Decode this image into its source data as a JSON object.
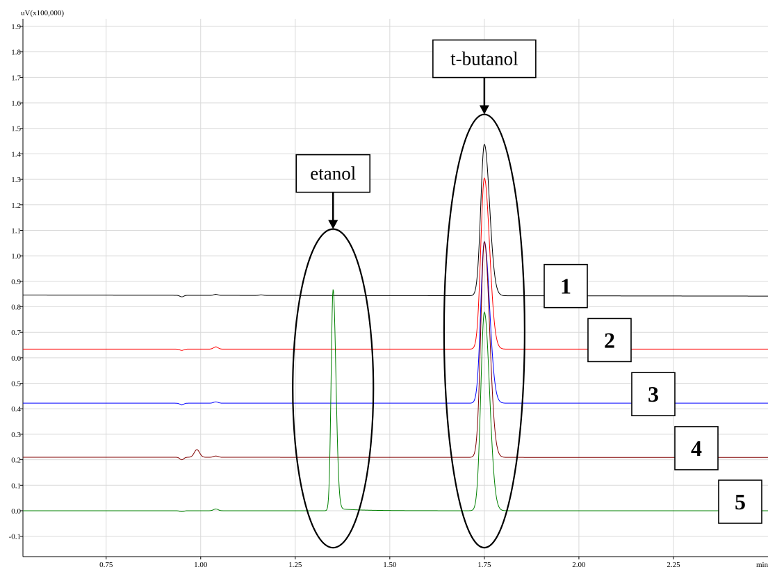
{
  "chart_data": {
    "type": "line",
    "title": "",
    "ylabel": "uV(x100,000)",
    "xlabel": "min",
    "xlim": [
      0.53,
      2.5
    ],
    "ylim": [
      -0.18,
      1.93
    ],
    "xticks": [
      0.75,
      1.0,
      1.25,
      1.5,
      1.75,
      2.0,
      2.25
    ],
    "xtick_labels": [
      "0.75",
      "1.00",
      "1.25",
      "1.50",
      "1.75",
      "2.00",
      "2.25"
    ],
    "yticks": [
      -0.1,
      0.0,
      0.1,
      0.2,
      0.3,
      0.4,
      0.5,
      0.6,
      0.7,
      0.8,
      0.9,
      1.0,
      1.1,
      1.2,
      1.3,
      1.4,
      1.5,
      1.6,
      1.7,
      1.8,
      1.9
    ],
    "ytick_labels": [
      "-0.1",
      "0.0",
      "0.1",
      "0.2",
      "0.3",
      "0.4",
      "0.5",
      "0.6",
      "0.7",
      "0.8",
      "0.9",
      "1.0",
      "1.1",
      "1.2",
      "1.3",
      "1.4",
      "1.5",
      "1.6",
      "1.7",
      "1.8",
      "1.9"
    ],
    "grid": true,
    "series": [
      {
        "label": "1",
        "color": "#000000",
        "baseline": 0.846,
        "baseline_drift": -0.004,
        "peaks": [
          {
            "x": 0.95,
            "h": -0.006,
            "w": 0.005
          },
          {
            "x": 1.04,
            "h": 0.004,
            "w": 0.005
          },
          {
            "x": 1.16,
            "h": 0.002,
            "w": 0.005
          },
          {
            "x": 1.75,
            "h": 0.594,
            "w": 0.011,
            "tail": 0.03
          }
        ]
      },
      {
        "label": "2",
        "color": "#ff0000",
        "baseline": 0.634,
        "baseline_drift": 0.0,
        "peaks": [
          {
            "x": 0.95,
            "h": -0.005,
            "w": 0.005
          },
          {
            "x": 1.04,
            "h": 0.009,
            "w": 0.006
          },
          {
            "x": 1.75,
            "h": 0.671,
            "w": 0.011,
            "tail": 0.03
          }
        ]
      },
      {
        "label": "3",
        "color": "#0000ff",
        "baseline": 0.422,
        "baseline_drift": 0.0,
        "peaks": [
          {
            "x": 0.95,
            "h": -0.007,
            "w": 0.005
          },
          {
            "x": 1.04,
            "h": 0.005,
            "w": 0.006
          },
          {
            "x": 1.75,
            "h": 0.634,
            "w": 0.011,
            "tail": 0.03
          }
        ]
      },
      {
        "label": "4",
        "color": "#800000",
        "baseline": 0.21,
        "baseline_drift": -0.001,
        "peaks": [
          {
            "x": 0.95,
            "h": -0.01,
            "w": 0.005
          },
          {
            "x": 0.99,
            "h": 0.03,
            "w": 0.007
          },
          {
            "x": 1.04,
            "h": 0.005,
            "w": 0.006
          },
          {
            "x": 1.75,
            "h": 0.846,
            "w": 0.011,
            "tail": 0.03
          }
        ]
      },
      {
        "label": "5",
        "color": "#008000",
        "baseline": 0.0,
        "baseline_drift": 0.0,
        "peaks": [
          {
            "x": 0.95,
            "h": -0.004,
            "w": 0.005
          },
          {
            "x": 1.04,
            "h": 0.007,
            "w": 0.006
          },
          {
            "x": 1.35,
            "h": 0.868,
            "w": 0.006,
            "tail": 0.06,
            "tail_h": 0.01
          },
          {
            "x": 1.75,
            "h": 0.779,
            "w": 0.011,
            "tail": 0.03
          }
        ]
      }
    ],
    "annotations": [
      {
        "text": "etanol",
        "x": 1.35,
        "ellipse_y": [
          -0.145,
          1.105
        ]
      },
      {
        "text": "t-butanol",
        "x": 1.75,
        "ellipse_y": [
          -0.145,
          1.555
        ]
      }
    ]
  }
}
